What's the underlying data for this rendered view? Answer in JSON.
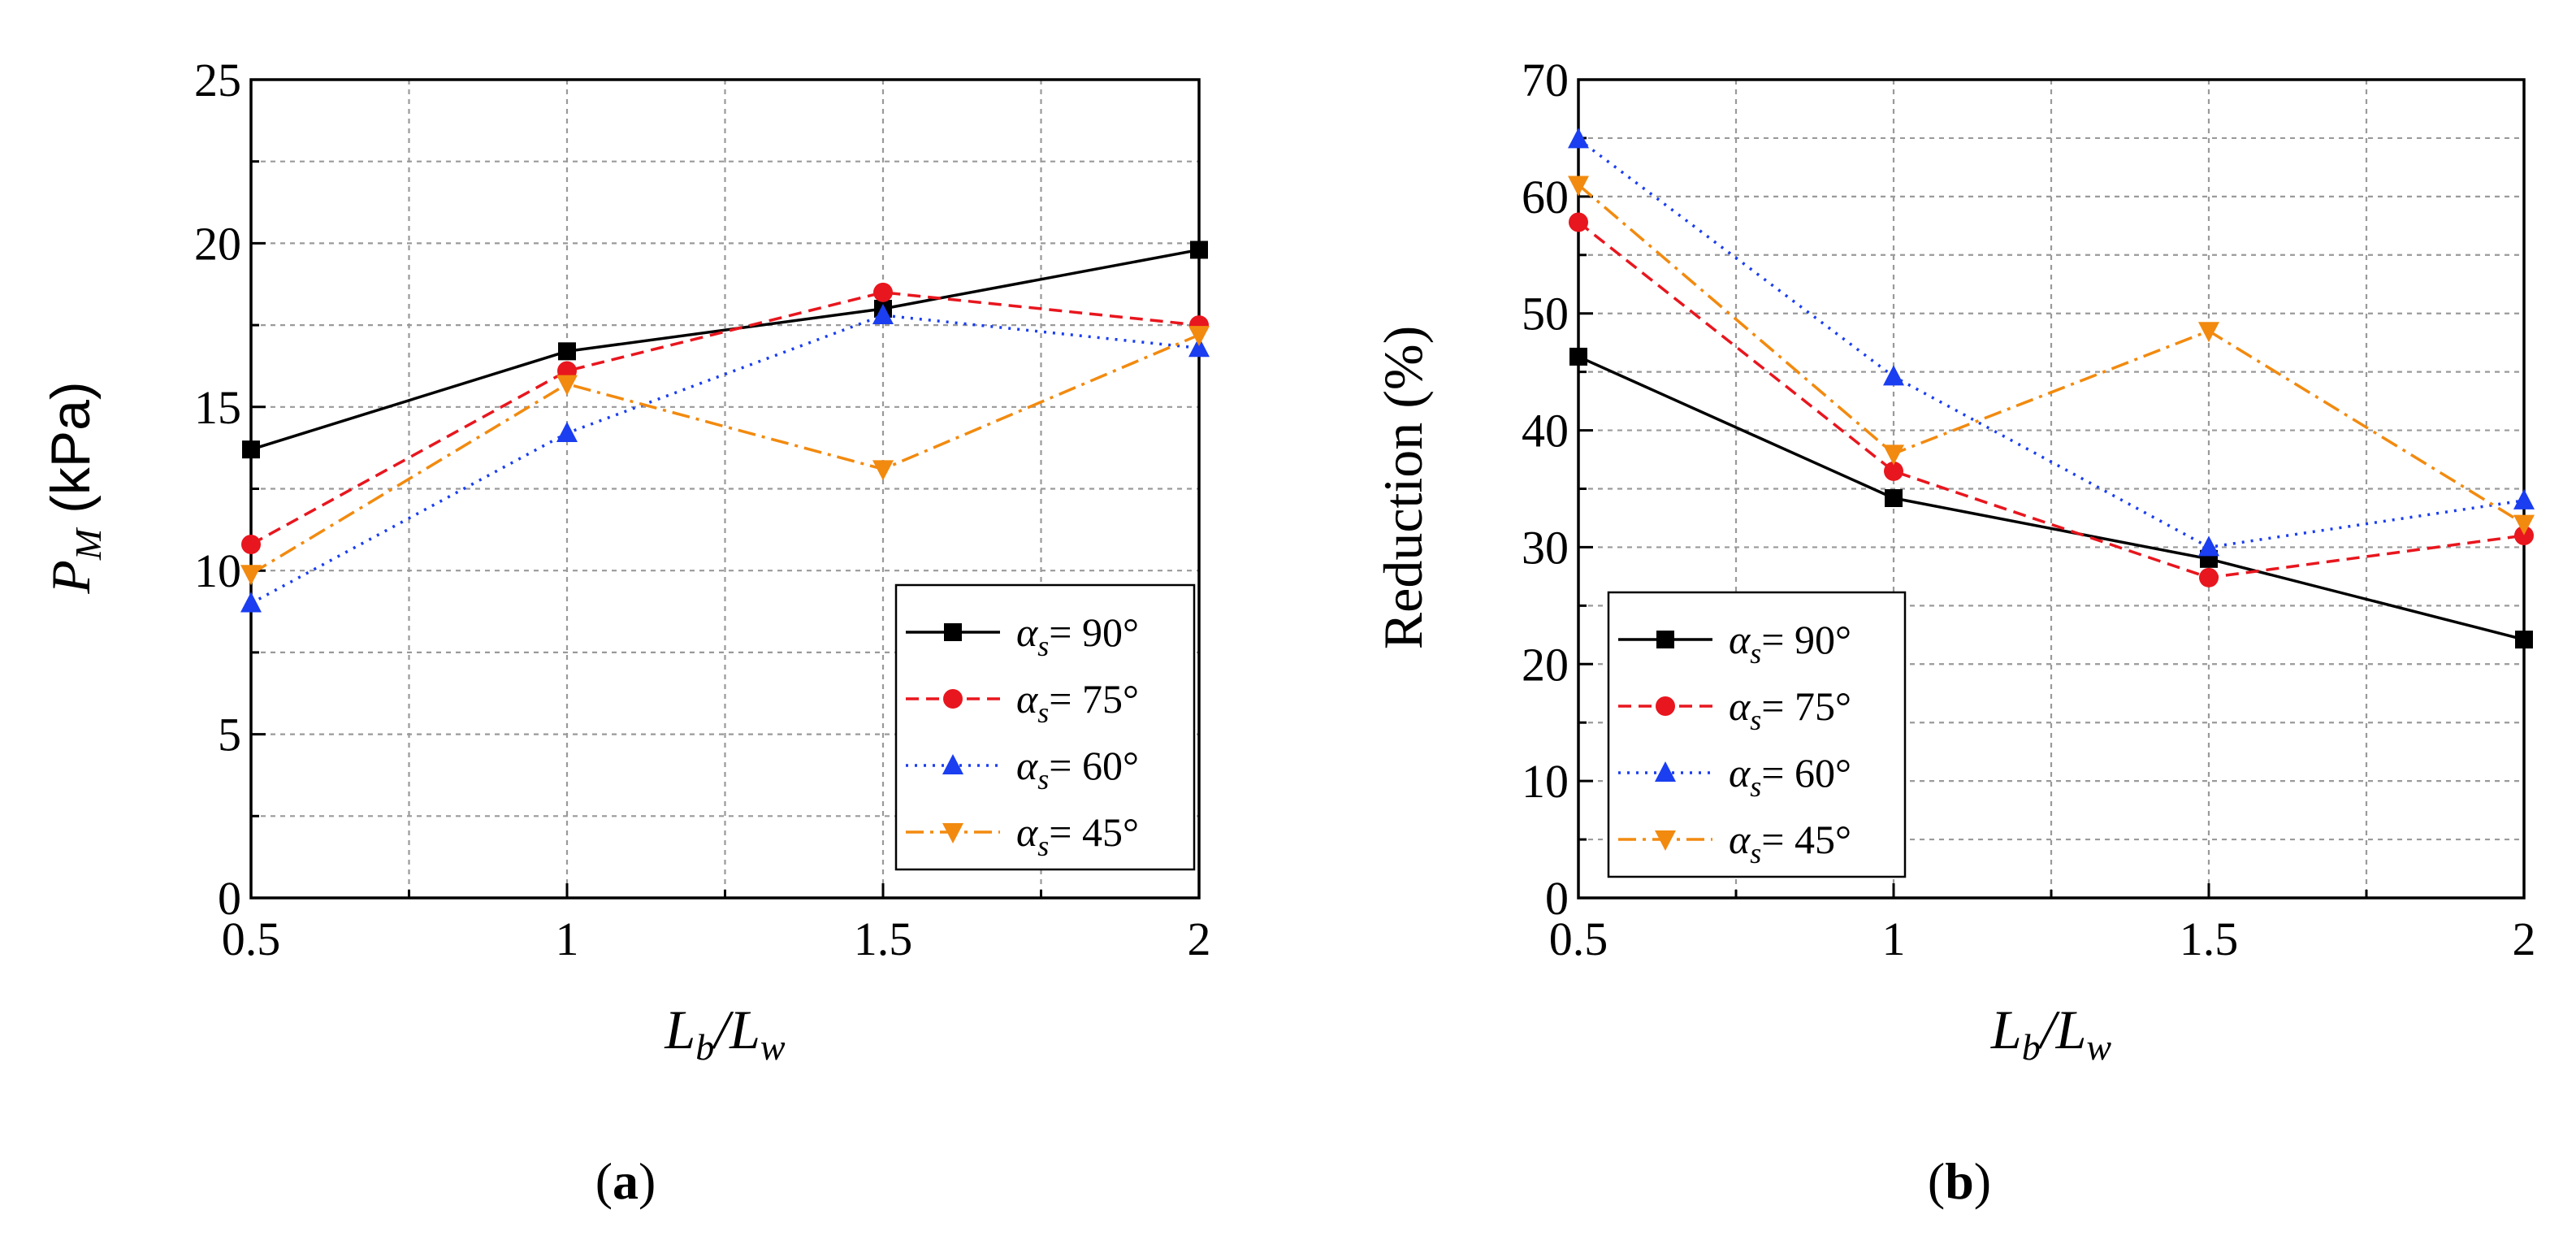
{
  "chart_data": [
    {
      "type": "line",
      "panel": "a",
      "title": "",
      "xlabel": {
        "main": "L",
        "sub1": "b",
        "slash": "/L",
        "sub2": "w"
      },
      "ylabel": {
        "main": "P",
        "sub": "M",
        "unit": " (kPa)"
      },
      "x": [
        0.5,
        1,
        1.5,
        2
      ],
      "xticks": [
        "0.5",
        "1",
        "1.5",
        "2"
      ],
      "xlim": [
        0.5,
        2
      ],
      "ylim": [
        0,
        25
      ],
      "yticks": [
        "0",
        "5",
        "10",
        "15",
        "20",
        "25"
      ],
      "grid": true,
      "legend_position": "bottom-right",
      "series": [
        {
          "name": "αs = 90°",
          "symbol": "α",
          "sub": "s",
          "value_label": "= 90°",
          "values": [
            13.7,
            16.7,
            18.0,
            19.8
          ],
          "color": "#000000",
          "marker": "square",
          "dash": ""
        },
        {
          "name": "αs = 75°",
          "symbol": "α",
          "sub": "s",
          "value_label": "= 75°",
          "values": [
            10.8,
            16.1,
            18.5,
            17.5
          ],
          "color": "#e8161e",
          "marker": "circle",
          "dash": "16 9"
        },
        {
          "name": "αs = 60°",
          "symbol": "α",
          "sub": "s",
          "value_label": "= 60°",
          "values": [
            9.0,
            14.2,
            17.8,
            16.8
          ],
          "color": "#1a3ef0",
          "marker": "triangle-up",
          "dash": "3 8"
        },
        {
          "name": "αs = 45°",
          "symbol": "α",
          "sub": "s",
          "value_label": "= 45°",
          "values": [
            9.9,
            15.7,
            13.1,
            17.2
          ],
          "color": "#f28a0f",
          "marker": "triangle-down",
          "dash": "22 8 4 8"
        }
      ]
    },
    {
      "type": "line",
      "panel": "b",
      "title": "",
      "xlabel": {
        "main": "L",
        "sub1": "b",
        "slash": "/L",
        "sub2": "w"
      },
      "ylabel": {
        "main": "Reduction (%)"
      },
      "x": [
        0.5,
        1,
        1.5,
        2
      ],
      "xticks": [
        "0.5",
        "1",
        "1.5",
        "2"
      ],
      "xlim": [
        0.5,
        2
      ],
      "ylim": [
        0,
        70
      ],
      "yticks": [
        "0",
        "10",
        "20",
        "30",
        "40",
        "50",
        "60",
        "70"
      ],
      "grid": true,
      "legend_position": "bottom-left",
      "series": [
        {
          "name": "αs = 90°",
          "symbol": "α",
          "sub": "s",
          "value_label": "= 90°",
          "values": [
            46.3,
            34.2,
            29.0,
            22.1
          ],
          "color": "#000000",
          "marker": "square",
          "dash": ""
        },
        {
          "name": "αs = 75°",
          "symbol": "α",
          "sub": "s",
          "value_label": "= 75°",
          "values": [
            57.8,
            36.5,
            27.4,
            31.0
          ],
          "color": "#e8161e",
          "marker": "circle",
          "dash": "16 9"
        },
        {
          "name": "αs = 60°",
          "symbol": "α",
          "sub": "s",
          "value_label": "= 60°",
          "values": [
            64.9,
            44.6,
            30.0,
            34.0
          ],
          "color": "#1a3ef0",
          "marker": "triangle-up",
          "dash": "3 8"
        },
        {
          "name": "αs = 45°",
          "symbol": "α",
          "sub": "s",
          "value_label": "= 45°",
          "values": [
            61.0,
            38.0,
            48.5,
            32.0
          ],
          "color": "#f28a0f",
          "marker": "triangle-down",
          "dash": "22 8 4 8"
        }
      ]
    }
  ],
  "captions": {
    "a": "a",
    "b": "b"
  }
}
